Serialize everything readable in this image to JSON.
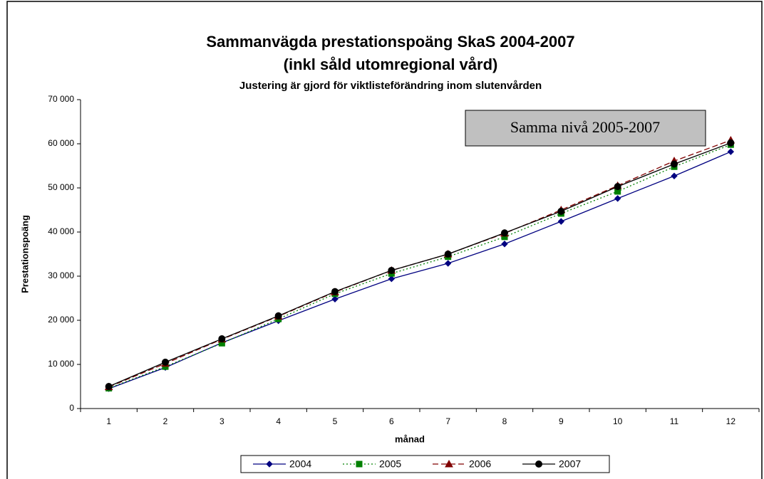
{
  "chart_data": {
    "type": "line",
    "title": "Sammanvägda prestationspoäng SkaS 2004-2007",
    "subtitle": "(inkl såld utomregional vård)",
    "note": "Justering är gjord för viktlisteförändring inom slutenvården",
    "annotation": "Samma nivå 2005-2007",
    "x_label": "månad",
    "y_label": "Prestationspoäng",
    "categories": [
      "1",
      "2",
      "3",
      "4",
      "5",
      "6",
      "7",
      "8",
      "9",
      "10",
      "11",
      "12"
    ],
    "series": [
      {
        "name": "2004",
        "color": "#000080",
        "dash": "solid",
        "marker": "diamond",
        "values": [
          4500,
          9300,
          14900,
          19900,
          24800,
          29400,
          32900,
          37300,
          42400,
          47600,
          52700,
          58200
        ]
      },
      {
        "name": "2005",
        "color": "#008000",
        "dash": "dotted",
        "marker": "square",
        "values": [
          4600,
          9500,
          14800,
          20300,
          26000,
          30600,
          34400,
          38900,
          44200,
          49200,
          54800,
          59800
        ]
      },
      {
        "name": "2006",
        "color": "#800000",
        "dash": "dashed",
        "marker": "triangle",
        "values": [
          4900,
          10200,
          15700,
          20900,
          26400,
          31300,
          35000,
          39700,
          45000,
          50500,
          56100,
          60800
        ]
      },
      {
        "name": "2007",
        "color": "#000000",
        "dash": "solid",
        "marker": "circle",
        "values": [
          5000,
          10500,
          15800,
          21000,
          26500,
          31300,
          35000,
          39800,
          44700,
          50300,
          55400,
          60200
        ]
      }
    ],
    "ylim": [
      0,
      70000
    ],
    "yticks": [
      0,
      {
        "value": 10000,
        "label": "10 000"
      },
      {
        "value": 20000,
        "label": "20 000"
      },
      {
        "value": 30000,
        "label": "30 000"
      },
      {
        "value": 40000,
        "label": "40 000"
      },
      {
        "value": 50000,
        "label": "50 000"
      },
      {
        "value": 60000,
        "label": "60 000"
      },
      {
        "value": 70000,
        "label": "70 000"
      }
    ],
    "grid": false,
    "legend": "bottom"
  }
}
